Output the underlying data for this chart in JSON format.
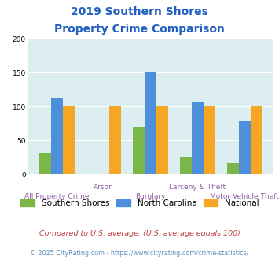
{
  "title_line1": "2019 Southern Shores",
  "title_line2": "Property Crime Comparison",
  "categories": [
    "All Property Crime",
    "Arson",
    "Burglary",
    "Larceny & Theft",
    "Motor Vehicle Theft"
  ],
  "southern_shores": [
    32,
    0,
    70,
    26,
    17
  ],
  "north_carolina": [
    112,
    0,
    152,
    107,
    79
  ],
  "national": [
    100,
    100,
    100,
    100,
    100
  ],
  "color_ss": "#7ab648",
  "color_nc": "#4e8fdb",
  "color_nat": "#f5a623",
  "ylim": [
    0,
    200
  ],
  "yticks": [
    0,
    50,
    100,
    150,
    200
  ],
  "legend_labels": [
    "Southern Shores",
    "North Carolina",
    "National"
  ],
  "footnote1": "Compared to U.S. average. (U.S. average equals 100)",
  "footnote2": "© 2025 CityRating.com - https://www.cityrating.com/crime-statistics/",
  "title_color": "#2060c0",
  "xlabel_color": "#9060a0",
  "footnote1_color": "#c04040",
  "footnote2_color": "#6090c0",
  "bg_color": "#ddeef0"
}
